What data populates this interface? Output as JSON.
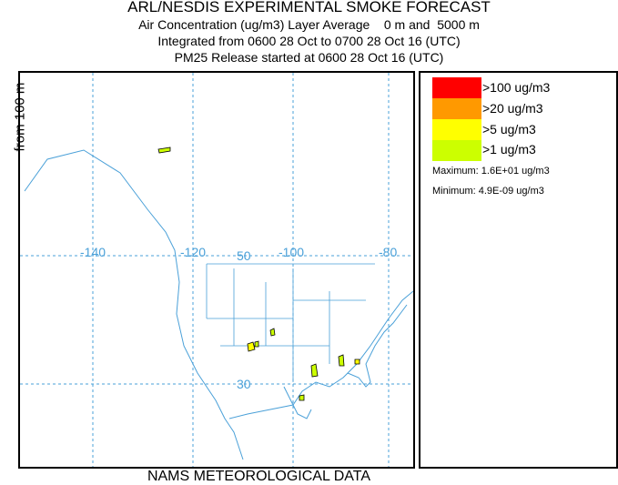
{
  "title": "ARL/NESDIS EXPERIMENTAL SMOKE FORECAST",
  "subtitle1": "Air Concentration (ug/m3) Layer Average    0 m and  5000 m",
  "subtitle2": "Integrated from 0600 28 Oct to 0700 28 Oct 16 (UTC)",
  "subtitle3": "PM25 Release started at 0600 28 Oct 16 (UTC)",
  "side_label": "from   100 m",
  "footer": "NAMS METEOROLOGICAL DATA",
  "map": {
    "lon_labels": [
      "-140",
      "-120",
      "-100",
      "-80"
    ],
    "lat_labels": [
      "50",
      "30"
    ],
    "grid_color": "#4aa0d8",
    "land_outline_color": "#4aa0d8"
  },
  "legend": {
    "items": [
      {
        "label": ">100 ug/m3",
        "color": "#ff0000"
      },
      {
        "label": ">20 ug/m3",
        "color": "#ff9900"
      },
      {
        "label": ">5 ug/m3",
        "color": "#ffff00"
      },
      {
        "label": ">1 ug/m3",
        "color": "#ccff00"
      }
    ],
    "maximum": "Maximum: 1.6E+01 ug/m3",
    "minimum": "Minimum: 4.9E-09 ug/m3"
  }
}
